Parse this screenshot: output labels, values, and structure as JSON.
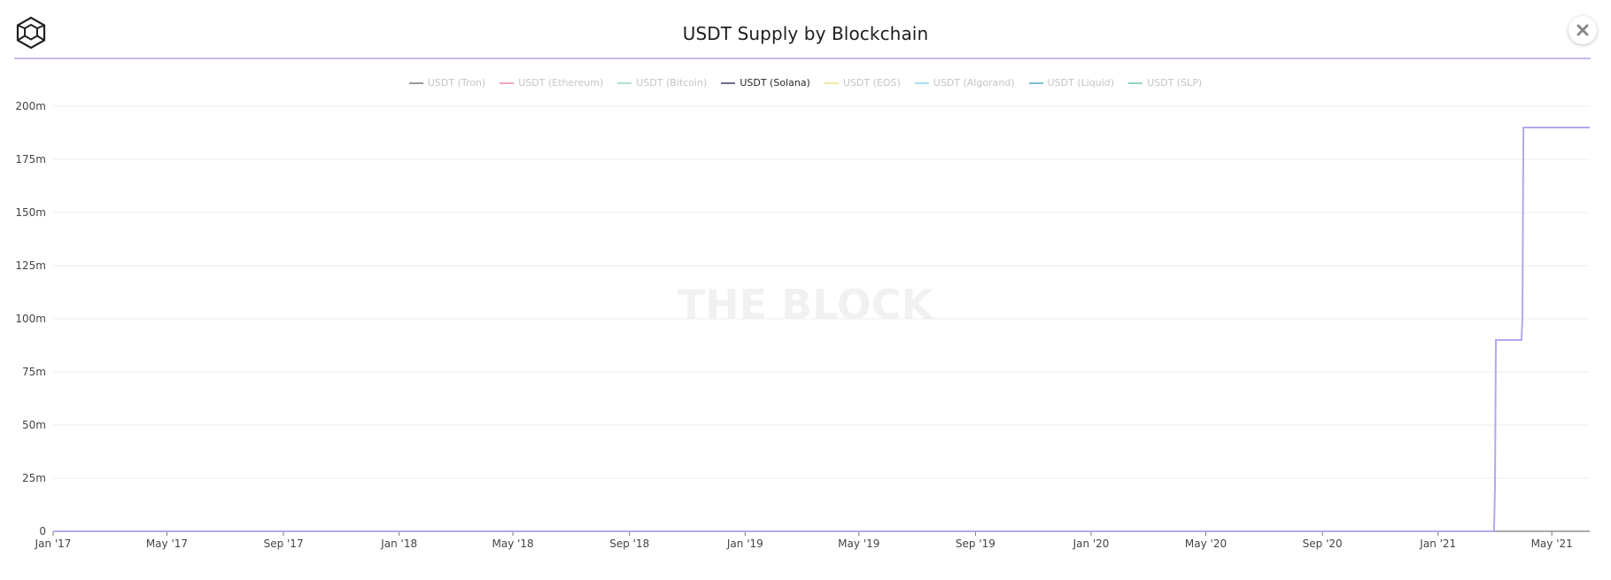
{
  "header": {
    "title": "USDT Supply by Blockchain",
    "logo_icon": "cube-logo-icon",
    "close_icon": "close-icon"
  },
  "colors": {
    "divider": "#c9b6f2",
    "solana": "#b7a6ec",
    "grid": "#ececec"
  },
  "watermark": "THE BLOCK",
  "legend": [
    {
      "label": "USDT (Tron)",
      "color": "#9a9a9a",
      "active": false
    },
    {
      "label": "USDT (Ethereum)",
      "color": "#f2a7b8",
      "active": false
    },
    {
      "label": "USDT (Bitcoin)",
      "color": "#a9e3d6",
      "active": false
    },
    {
      "label": "USDT (Solana)",
      "color": "#6f6a8c",
      "active": true
    },
    {
      "label": "USDT (EOS)",
      "color": "#f5e6a8",
      "active": false
    },
    {
      "label": "USDT (Algorand)",
      "color": "#a8def2",
      "active": false
    },
    {
      "label": "USDT (Liquid)",
      "color": "#7fbcd3",
      "active": false
    },
    {
      "label": "USDT (SLP)",
      "color": "#8fd6c4",
      "active": false
    }
  ],
  "chart_data": {
    "type": "line",
    "title": "USDT Supply by Blockchain",
    "xlabel": "",
    "ylabel": "",
    "grid": true,
    "legend_position": "top-center",
    "x_range": [
      "2017-01-01",
      "2021-06-10"
    ],
    "ylim": [
      0,
      200000000
    ],
    "y_ticks": [
      {
        "value": 0,
        "label": "0"
      },
      {
        "value": 25000000,
        "label": "25m"
      },
      {
        "value": 50000000,
        "label": "50m"
      },
      {
        "value": 75000000,
        "label": "75m"
      },
      {
        "value": 100000000,
        "label": "100m"
      },
      {
        "value": 125000000,
        "label": "125m"
      },
      {
        "value": 150000000,
        "label": "150m"
      },
      {
        "value": 175000000,
        "label": "175m"
      },
      {
        "value": 200000000,
        "label": "200m"
      }
    ],
    "x_ticks": [
      {
        "date": "2017-01-01",
        "label": "Jan '17"
      },
      {
        "date": "2017-05-01",
        "label": "May '17"
      },
      {
        "date": "2017-09-01",
        "label": "Sep '17"
      },
      {
        "date": "2018-01-01",
        "label": "Jan '18"
      },
      {
        "date": "2018-05-01",
        "label": "May '18"
      },
      {
        "date": "2018-09-01",
        "label": "Sep '18"
      },
      {
        "date": "2019-01-01",
        "label": "Jan '19"
      },
      {
        "date": "2019-05-01",
        "label": "May '19"
      },
      {
        "date": "2019-09-01",
        "label": "Sep '19"
      },
      {
        "date": "2020-01-01",
        "label": "Jan '20"
      },
      {
        "date": "2020-05-01",
        "label": "May '20"
      },
      {
        "date": "2020-09-01",
        "label": "Sep '20"
      },
      {
        "date": "2021-01-01",
        "label": "Jan '21"
      },
      {
        "date": "2021-05-01",
        "label": "May '21"
      }
    ],
    "series": [
      {
        "name": "USDT (Solana)",
        "points": [
          {
            "x": "2017-01-01",
            "y": 0
          },
          {
            "x": "2021-03-01",
            "y": 0
          },
          {
            "x": "2021-03-02",
            "y": 20000000
          },
          {
            "x": "2021-03-03",
            "y": 90000000
          },
          {
            "x": "2021-03-30",
            "y": 90000000
          },
          {
            "x": "2021-03-31",
            "y": 100000000
          },
          {
            "x": "2021-04-01",
            "y": 190000000
          },
          {
            "x": "2021-06-10",
            "y": 190000000
          }
        ]
      }
    ]
  }
}
